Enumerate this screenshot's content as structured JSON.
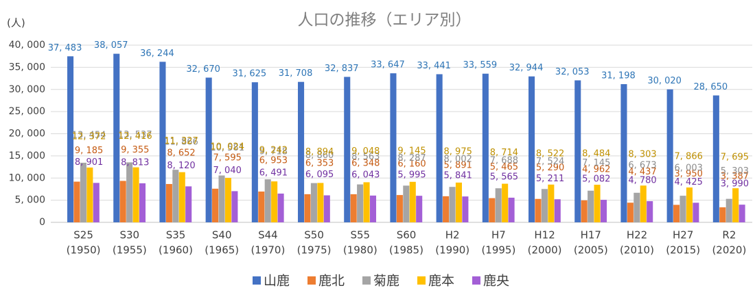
{
  "chart_data": {
    "type": "bar",
    "title": "人口の推移（エリア別）",
    "y_label": "(人)",
    "categories": [
      [
        "S25",
        "(1950)"
      ],
      [
        "S30",
        "(1955)"
      ],
      [
        "S35",
        "(1960)"
      ],
      [
        "S40",
        "(1965)"
      ],
      [
        "S44",
        "(1970)"
      ],
      [
        "S50",
        "(1975)"
      ],
      [
        "S55",
        "(1980)"
      ],
      [
        "S60",
        "(1985)"
      ],
      [
        "H2",
        "(1990)"
      ],
      [
        "H7",
        "(1995)"
      ],
      [
        "H12",
        "(2000)"
      ],
      [
        "H17",
        "(2005)"
      ],
      [
        "H22",
        "(2010)"
      ],
      [
        "H27",
        "(2015)"
      ],
      [
        "R2",
        "(2020)"
      ]
    ],
    "series": [
      {
        "name": "山鹿",
        "color": "#4472c4",
        "label_color": "#2e75b6",
        "values": [
          37483,
          38057,
          36244,
          32670,
          31625,
          31708,
          32837,
          33647,
          33441,
          33559,
          32944,
          32053,
          31198,
          30020,
          28650
        ],
        "value_labels": [
          "37, 483",
          "38, 057",
          "36, 244",
          "32, 670",
          "31, 625",
          "31, 708",
          "32, 837",
          "33, 647",
          "33, 441",
          "33, 559",
          "32, 944",
          "32, 053",
          "31, 198",
          "30, 020",
          "28, 650"
        ]
      },
      {
        "name": "鹿北",
        "color": "#ed7d31",
        "label_color": "#c55a11",
        "values": [
          9185,
          9355,
          8652,
          7595,
          6953,
          6353,
          6348,
          6160,
          5891,
          5465,
          5290,
          4962,
          4437,
          3950,
          3387
        ],
        "value_labels": [
          "9, 185",
          "9, 355",
          "8, 652",
          "7, 595",
          "6, 953",
          "6, 353",
          "6, 348",
          "6, 160",
          "5, 891",
          "5, 465",
          "5, 290",
          "4, 962",
          "4, 437",
          "3, 950",
          "3, 387"
        ]
      },
      {
        "name": "菊鹿",
        "color": "#a5a5a5",
        "label_color": "#8c8c8c",
        "values": [
          13454,
          13537,
          11866,
          10581,
          9718,
          8860,
          8563,
          8287,
          8002,
          7688,
          7524,
          7145,
          6673,
          6003,
          5303
        ],
        "value_labels": [
          "13, 454",
          "13, 537",
          "11, 866",
          "10, 581",
          "9, 718",
          "8, 860",
          "8, 563",
          "8, 287",
          "8, 002",
          "7, 688",
          "7, 524",
          "7, 145",
          "6, 673",
          "6, 003",
          "5, 303"
        ]
      },
      {
        "name": "鹿本",
        "color": "#ffc000",
        "label_color": "#bf9000",
        "values": [
          12372,
          12416,
          11327,
          10024,
          9242,
          8894,
          9048,
          9145,
          8975,
          8714,
          8522,
          8484,
          8303,
          7866,
          7695
        ],
        "value_labels": [
          "12, 372",
          "12, 416",
          "11, 327",
          "10, 024",
          "9, 242",
          "8, 894",
          "9, 048",
          "9, 145",
          "8, 975",
          "8, 714",
          "8, 522",
          "8, 484",
          "8, 303",
          "7, 866",
          "7, 695"
        ]
      },
      {
        "name": "鹿央",
        "color": "#a35fd6",
        "label_color": "#7030a0",
        "values": [
          8901,
          8813,
          8120,
          7040,
          6491,
          6095,
          6043,
          5995,
          5841,
          5565,
          5211,
          5082,
          4780,
          4425,
          3990
        ],
        "value_labels": [
          "8, 901",
          "8, 813",
          "8, 120",
          "7, 040",
          "6, 491",
          "6, 095",
          "6, 043",
          "5, 995",
          "5, 841",
          "5, 565",
          "5, 211",
          "5, 082",
          "4, 780",
          "4, 425",
          "3, 990"
        ]
      }
    ],
    "ylim": [
      0,
      40000
    ],
    "yticks": [
      0,
      {
        "value": 5000,
        "label": "5, 000"
      },
      {
        "value": 10000,
        "label": "10, 000"
      },
      {
        "value": 15000,
        "label": "15, 000"
      },
      {
        "value": 20000,
        "label": "20, 000"
      },
      {
        "value": 25000,
        "label": "25, 000"
      },
      {
        "value": 30000,
        "label": "30, 000"
      },
      {
        "value": 35000,
        "label": "35, 000"
      },
      {
        "value": 40000,
        "label": "40, 000"
      }
    ],
    "grid": true,
    "legend": "bottom"
  }
}
